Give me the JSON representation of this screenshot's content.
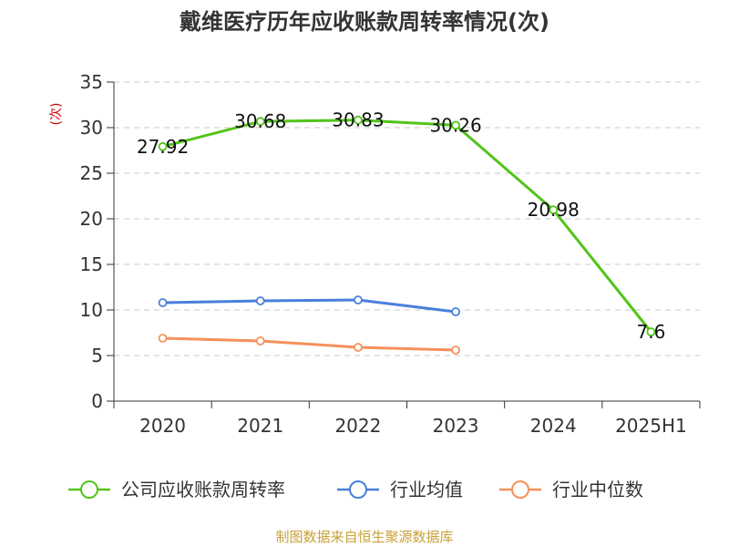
{
  "title": "戴维医疗历年应收账款周转率情况(次)",
  "source": "制图数据来自恒生聚源数据库",
  "colors": {
    "source_text": "#c8a23a",
    "ylabel_text": "#cc0000",
    "grid": "#c8c8c8",
    "axis": "#333333"
  },
  "chart_data": {
    "type": "line",
    "title": "戴维医疗历年应收账款周转率情况(次)",
    "xlabel": "",
    "ylabel": "(次)",
    "ylim": [
      0,
      35
    ],
    "yticks": [
      0,
      5,
      10,
      15,
      20,
      25,
      30,
      35
    ],
    "categories": [
      "2020",
      "2021",
      "2022",
      "2023",
      "2024",
      "2025H1"
    ],
    "grid": true,
    "legend_position": "bottom",
    "series": [
      {
        "name": "公司应收账款周转率",
        "color": "#52c41a",
        "values": [
          27.92,
          30.68,
          30.83,
          30.26,
          20.98,
          7.6
        ],
        "labels": [
          "27.92",
          "30.68",
          "30.83",
          "30.26",
          "20.98",
          "7.6"
        ],
        "show_labels": true
      },
      {
        "name": "行业均值",
        "color": "#4a7fdc",
        "values": [
          10.8,
          11.0,
          11.1,
          9.8,
          null,
          null
        ],
        "show_labels": false
      },
      {
        "name": "行业中位数",
        "color": "#f5915a",
        "values": [
          6.9,
          6.6,
          5.9,
          5.6,
          null,
          null
        ],
        "show_labels": false
      }
    ]
  }
}
